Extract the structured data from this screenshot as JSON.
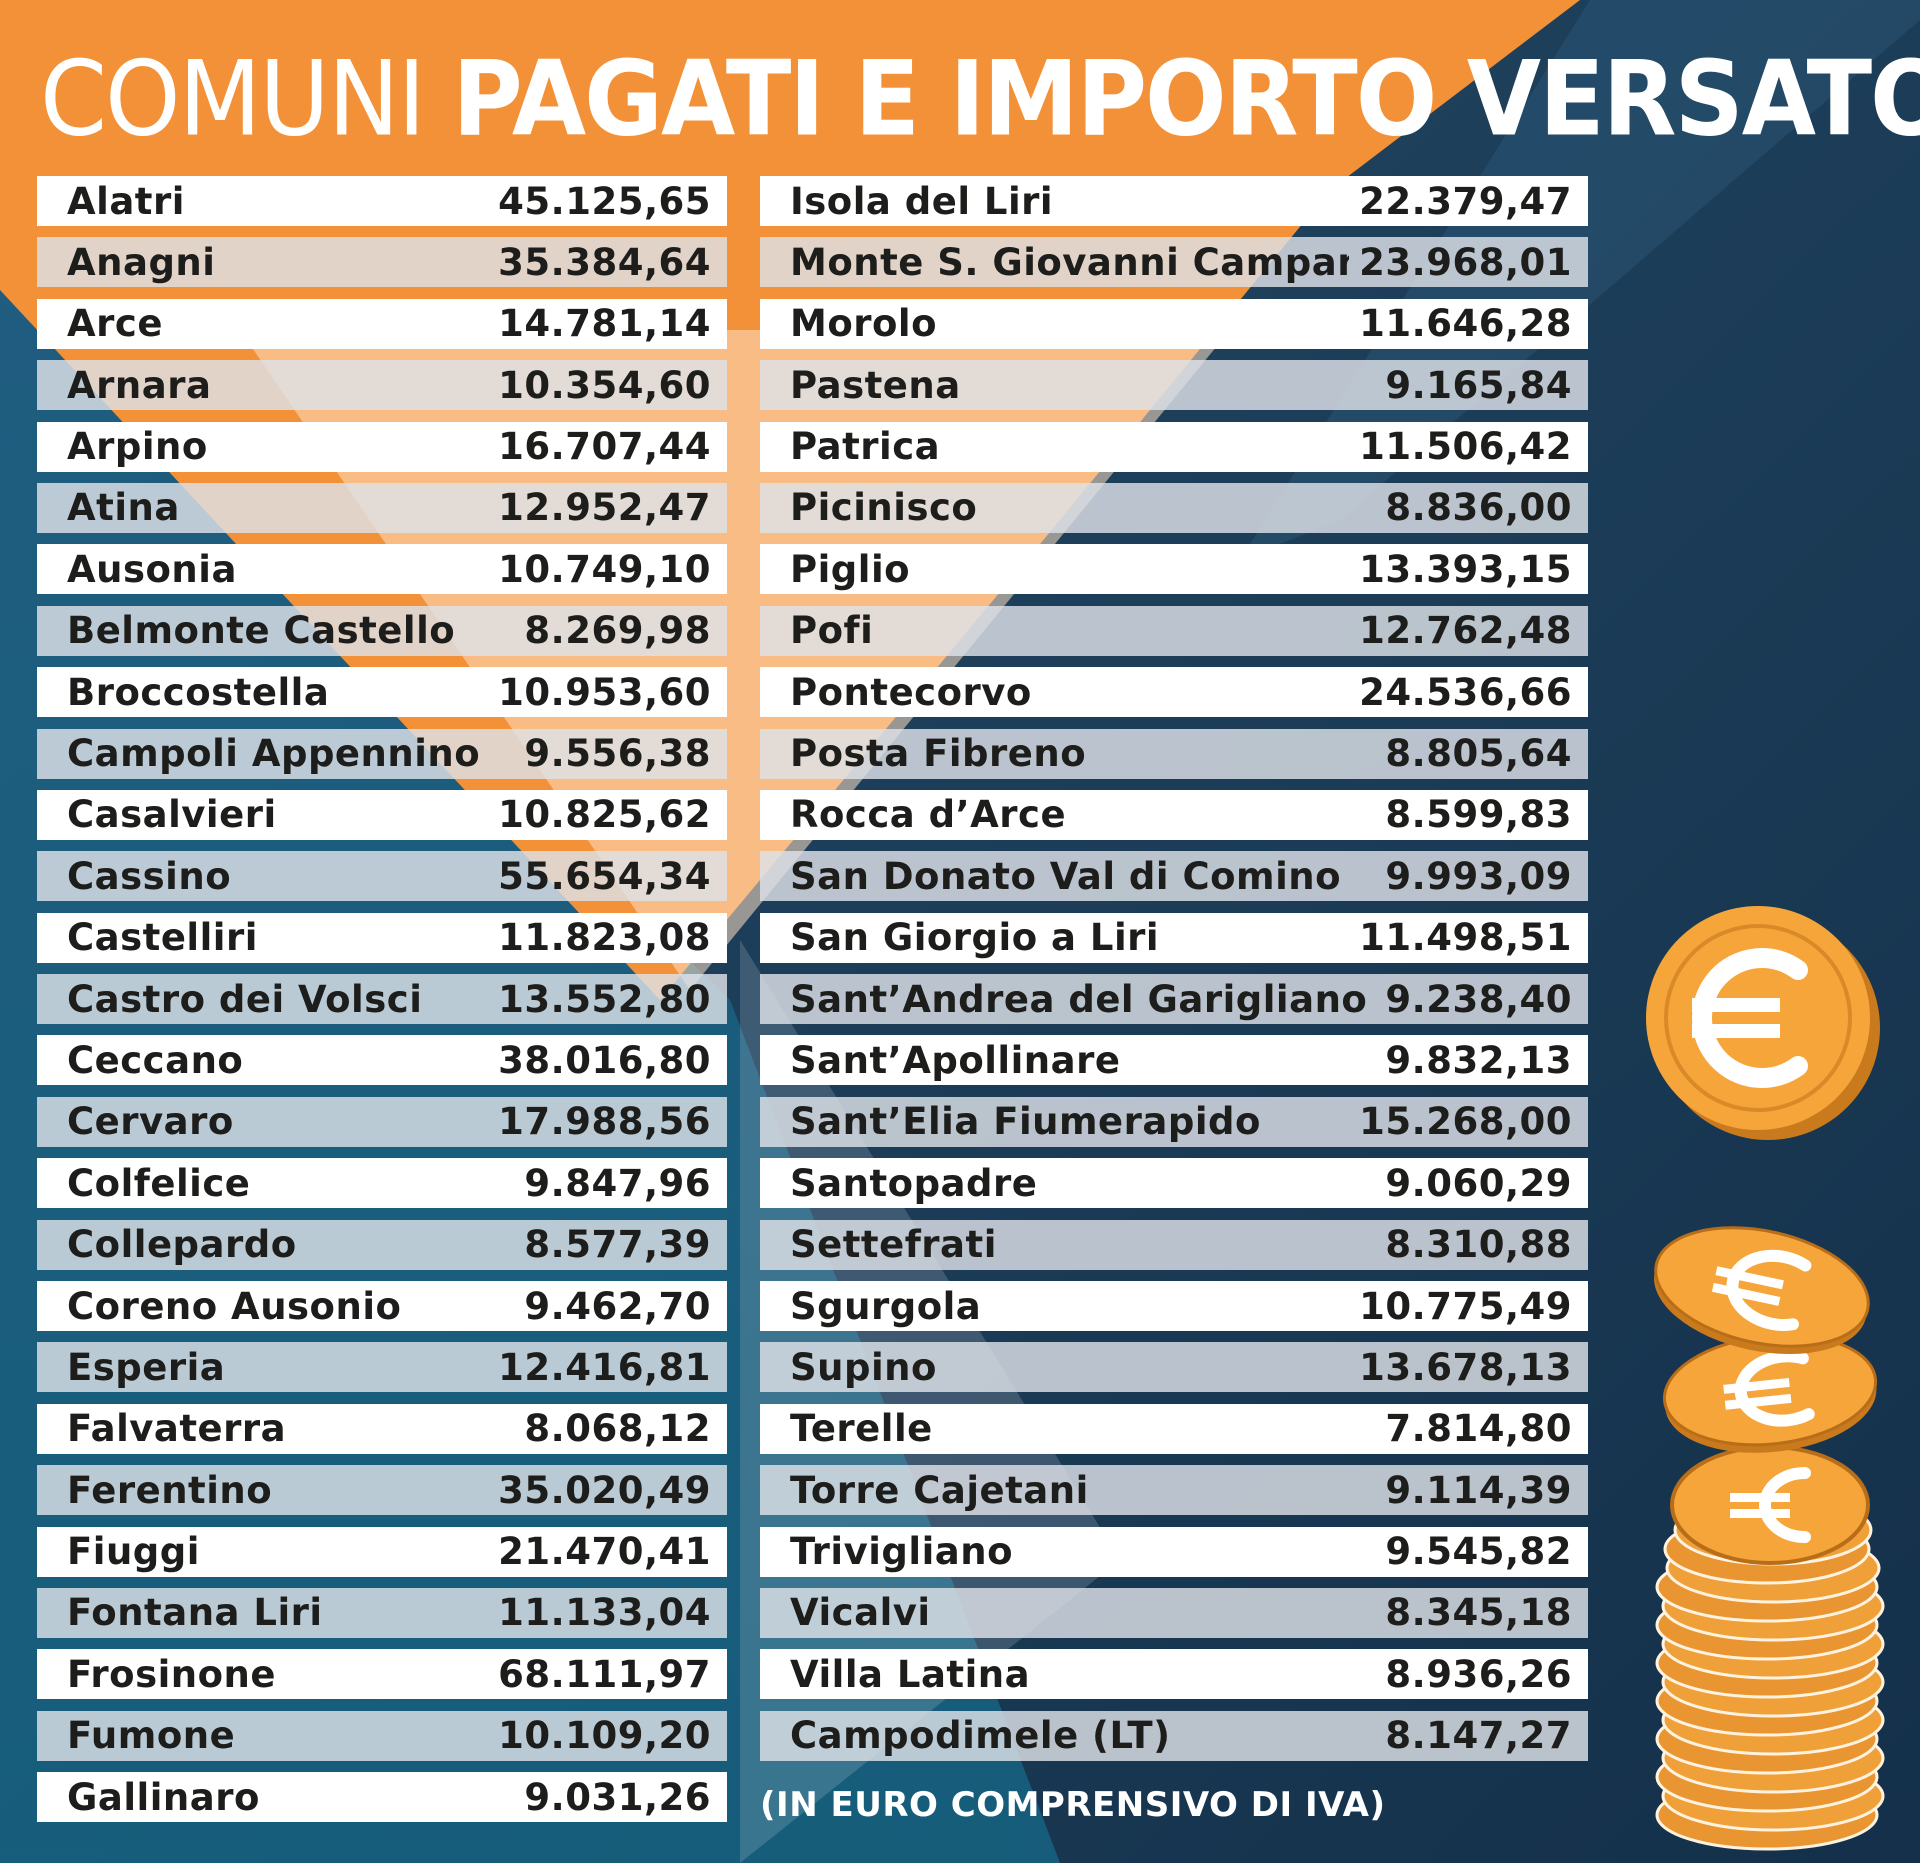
{
  "title": {
    "regular": "COMUNI ",
    "bold": "PAGATI E IMPORTO VERSATO"
  },
  "footnote": "(IN EURO COMPRENSIVO DI IVA)",
  "colors": {
    "orange": "#f39138",
    "light_orange": "#fde7d3",
    "navy": "#1c3a52",
    "teal": "#1a6a8c",
    "coin_gold": "#f5a53a"
  },
  "icons": [
    "euro-coin-icon",
    "euro-coin-stack-icon"
  ],
  "left_column": [
    {
      "name": "Alatri",
      "amount": "45.125,65"
    },
    {
      "name": "Anagni",
      "amount": "35.384,64"
    },
    {
      "name": "Arce",
      "amount": "14.781,14"
    },
    {
      "name": "Arnara",
      "amount": "10.354,60"
    },
    {
      "name": "Arpino",
      "amount": "16.707,44"
    },
    {
      "name": "Atina",
      "amount": "12.952,47"
    },
    {
      "name": "Ausonia",
      "amount": "10.749,10"
    },
    {
      "name": "Belmonte Castello",
      "amount": "8.269,98"
    },
    {
      "name": "Broccostella",
      "amount": "10.953,60"
    },
    {
      "name": "Campoli Appennino",
      "amount": "9.556,38"
    },
    {
      "name": "Casalvieri",
      "amount": "10.825,62"
    },
    {
      "name": "Cassino",
      "amount": "55.654,34"
    },
    {
      "name": "Castelliri",
      "amount": "11.823,08"
    },
    {
      "name": "Castro dei Volsci",
      "amount": "13.552,80"
    },
    {
      "name": "Ceccano",
      "amount": "38.016,80"
    },
    {
      "name": "Cervaro",
      "amount": "17.988,56"
    },
    {
      "name": "Colfelice",
      "amount": "9.847,96"
    },
    {
      "name": "Collepardo",
      "amount": "8.577,39"
    },
    {
      "name": "Coreno Ausonio",
      "amount": "9.462,70"
    },
    {
      "name": "Esperia",
      "amount": "12.416,81"
    },
    {
      "name": "Falvaterra",
      "amount": "8.068,12"
    },
    {
      "name": "Ferentino",
      "amount": "35.020,49"
    },
    {
      "name": "Fiuggi",
      "amount": "21.470,41"
    },
    {
      "name": "Fontana Liri",
      "amount": "11.133,04"
    },
    {
      "name": "Frosinone",
      "amount": "68.111,97"
    },
    {
      "name": "Fumone",
      "amount": "10.109,20"
    },
    {
      "name": "Gallinaro",
      "amount": "9.031,26"
    }
  ],
  "right_column": [
    {
      "name": "Isola del Liri",
      "amount": "22.379,47"
    },
    {
      "name": "Monte S. Giovanni Campano",
      "amount": "23.968,01"
    },
    {
      "name": "Morolo",
      "amount": "11.646,28"
    },
    {
      "name": "Pastena",
      "amount": "9.165,84"
    },
    {
      "name": "Patrica",
      "amount": "11.506,42"
    },
    {
      "name": "Picinisco",
      "amount": "8.836,00"
    },
    {
      "name": "Piglio",
      "amount": "13.393,15"
    },
    {
      "name": "Pofi",
      "amount": "12.762,48"
    },
    {
      "name": "Pontecorvo",
      "amount": "24.536,66"
    },
    {
      "name": "Posta Fibreno",
      "amount": "8.805,64"
    },
    {
      "name": "Rocca d’Arce",
      "amount": "8.599,83"
    },
    {
      "name": "San Donato Val di Comino",
      "amount": "9.993,09"
    },
    {
      "name": "San Giorgio a Liri",
      "amount": "11.498,51"
    },
    {
      "name": "Sant’Andrea del Garigliano",
      "amount": "9.238,40"
    },
    {
      "name": "Sant’Apollinare",
      "amount": "9.832,13"
    },
    {
      "name": "Sant’Elia Fiumerapido",
      "amount": "15.268,00"
    },
    {
      "name": "Santopadre",
      "amount": "9.060,29"
    },
    {
      "name": "Settefrati",
      "amount": "8.310,88"
    },
    {
      "name": "Sgurgola",
      "amount": "10.775,49"
    },
    {
      "name": "Supino",
      "amount": "13.678,13"
    },
    {
      "name": "Terelle",
      "amount": "7.814,80"
    },
    {
      "name": "Torre Cajetani",
      "amount": "9.114,39"
    },
    {
      "name": "Trivigliano",
      "amount": "9.545,82"
    },
    {
      "name": "Vicalvi",
      "amount": "8.345,18"
    },
    {
      "name": "Villa Latina",
      "amount": "8.936,26"
    },
    {
      "name": "Campodimele (LT)",
      "amount": "8.147,27"
    }
  ]
}
